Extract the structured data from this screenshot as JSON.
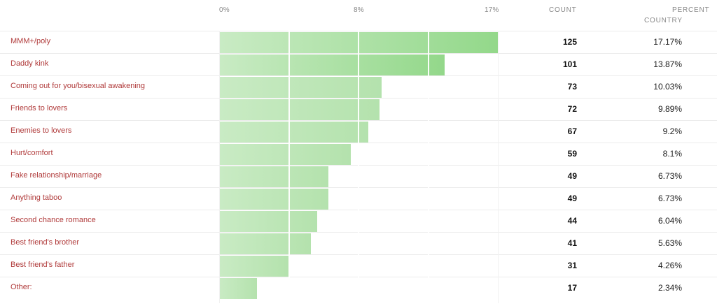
{
  "axis": {
    "min_label": "0%",
    "mid_label": "8%",
    "max_label": "17%"
  },
  "columns": {
    "count_header": "COUNT",
    "percent_header_line1": "PERCENT",
    "percent_header_line2": "COUNTRY"
  },
  "colors": {
    "bar_light": "#c9ebc4",
    "bar_dark": "#93d88a",
    "label": "#b03a3a"
  },
  "chart_data": {
    "type": "bar",
    "orientation": "horizontal",
    "categories": [
      "MMM+/poly",
      "Daddy kink",
      "Coming out for you/bisexual awakening",
      "Friends to lovers",
      "Enemies to lovers",
      "Hurt/comfort",
      "Fake relationship/marriage",
      "Anything taboo",
      "Second chance romance",
      "Best friend's brother",
      "Best friend's father",
      "Other:"
    ],
    "counts": [
      125,
      101,
      73,
      72,
      67,
      59,
      49,
      49,
      44,
      41,
      31,
      17
    ],
    "percents": [
      "17.17%",
      "13.87%",
      "10.03%",
      "9.89%",
      "9.2%",
      "8.1%",
      "6.73%",
      "6.73%",
      "6.04%",
      "5.63%",
      "4.26%",
      "2.34%"
    ],
    "values": [
      17.17,
      13.87,
      10.03,
      9.89,
      9.2,
      8.1,
      6.73,
      6.73,
      6.04,
      5.63,
      4.26,
      2.34
    ],
    "xlim": [
      0,
      17.17
    ],
    "x_ticks": [
      "0%",
      "8%",
      "17%"
    ]
  }
}
